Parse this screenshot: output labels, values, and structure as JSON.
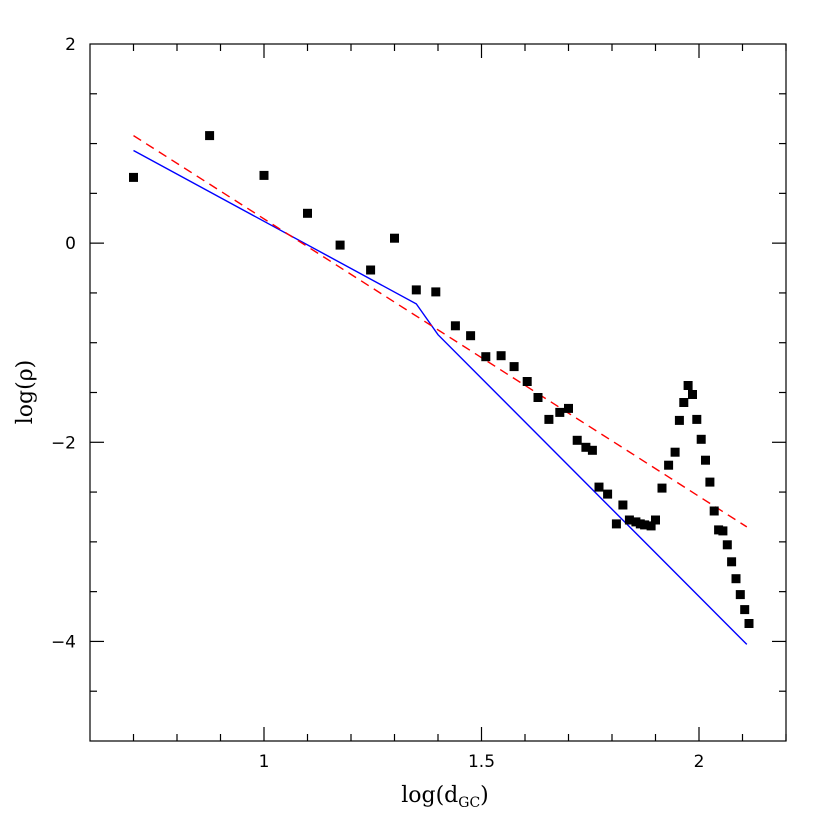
{
  "chart_data": {
    "type": "scatter",
    "title": "",
    "xlabel": "log(d",
    "xlabel_sub": "GC",
    "xlabel_suffix": ")",
    "ylabel": "log(ρ)",
    "xlim": [
      0.6,
      2.2
    ],
    "ylim": [
      -5,
      2
    ],
    "x_ticks": [
      1,
      1.5,
      2
    ],
    "x_tick_labels": [
      "1",
      "1.5",
      "2"
    ],
    "y_ticks": [
      -4,
      -2,
      0,
      2
    ],
    "y_tick_labels": [
      "−4",
      "−2",
      "0",
      "2"
    ],
    "x_minor_step": 0.1,
    "y_minor_step": 0.5,
    "grid": false,
    "legend": "none",
    "series": [
      {
        "kind": "points",
        "color": "#000000",
        "x": [
          0.7,
          0.875,
          1.0,
          1.1,
          1.175,
          1.245,
          1.3,
          1.35,
          1.395,
          1.44,
          1.475,
          1.51,
          1.545,
          1.575,
          1.605,
          1.63,
          1.655,
          1.68,
          1.7,
          1.72,
          1.74,
          1.755,
          1.77,
          1.79,
          1.81,
          1.825,
          1.84,
          1.855,
          1.865,
          1.875,
          1.89,
          1.9,
          1.915,
          1.93,
          1.945,
          1.955,
          1.965,
          1.975,
          1.985,
          1.995,
          2.005,
          2.015,
          2.025,
          2.035,
          2.045,
          2.055,
          2.065,
          2.075,
          2.085,
          2.095,
          2.105,
          2.115
        ],
        "y": [
          0.66,
          1.08,
          0.68,
          0.3,
          -0.02,
          -0.27,
          0.05,
          -0.47,
          -0.49,
          -0.83,
          -0.93,
          -1.14,
          -1.13,
          -1.24,
          -1.39,
          -1.55,
          -1.77,
          -1.7,
          -1.66,
          -1.98,
          -2.05,
          -2.08,
          -2.45,
          -2.52,
          -2.82,
          -2.63,
          -2.78,
          -2.8,
          -2.82,
          -2.83,
          -2.84,
          -2.78,
          -2.46,
          -2.23,
          -2.1,
          -1.78,
          -1.6,
          -1.43,
          -1.52,
          -1.77,
          -1.97,
          -2.18,
          -2.4,
          -2.69,
          -2.88,
          -2.89,
          -3.03,
          -3.2,
          -3.37,
          -3.53,
          -3.68,
          -3.82
        ]
      },
      {
        "kind": "line",
        "color": "#0000ff",
        "dash": "solid",
        "x": [
          0.7,
          1.35,
          1.4,
          2.11
        ],
        "y": [
          0.93,
          -0.61,
          -0.92,
          -4.03
        ]
      },
      {
        "kind": "line",
        "color": "#ff0000",
        "dash": "dashed",
        "x": [
          0.7,
          2.11
        ],
        "y": [
          1.08,
          -2.85
        ]
      }
    ]
  }
}
